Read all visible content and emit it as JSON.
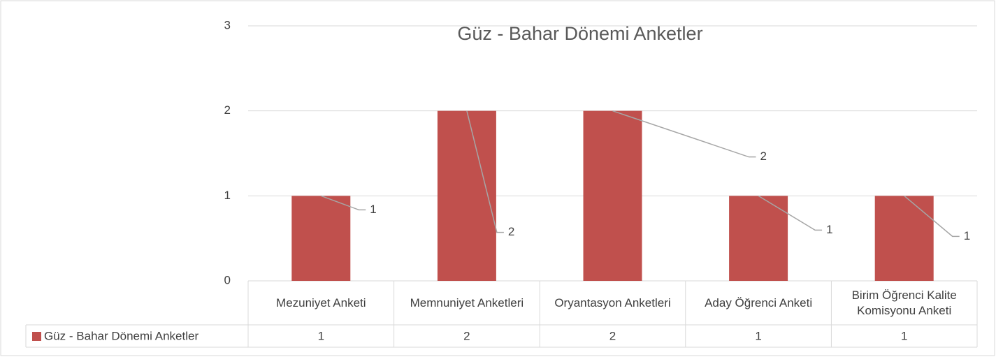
{
  "chart_data": {
    "type": "bar",
    "title": "Güz - Bahar Dönemi Anketler",
    "categories": [
      "Mezuniyet Anketi",
      "Memnuniyet Anketleri",
      "Oryantasyon Anketleri",
      "Aday Öğrenci Anketi",
      "Birim Öğrenci  Kalite Komisyonu  Anketi"
    ],
    "series": [
      {
        "name": "Güz - Bahar Dönemi Anketler",
        "color": "#c0504d",
        "values": [
          1,
          2,
          2,
          1,
          1
        ]
      }
    ],
    "ylim": [
      0,
      3
    ],
    "yticks": [
      0,
      1,
      2,
      3
    ],
    "grid": true
  }
}
